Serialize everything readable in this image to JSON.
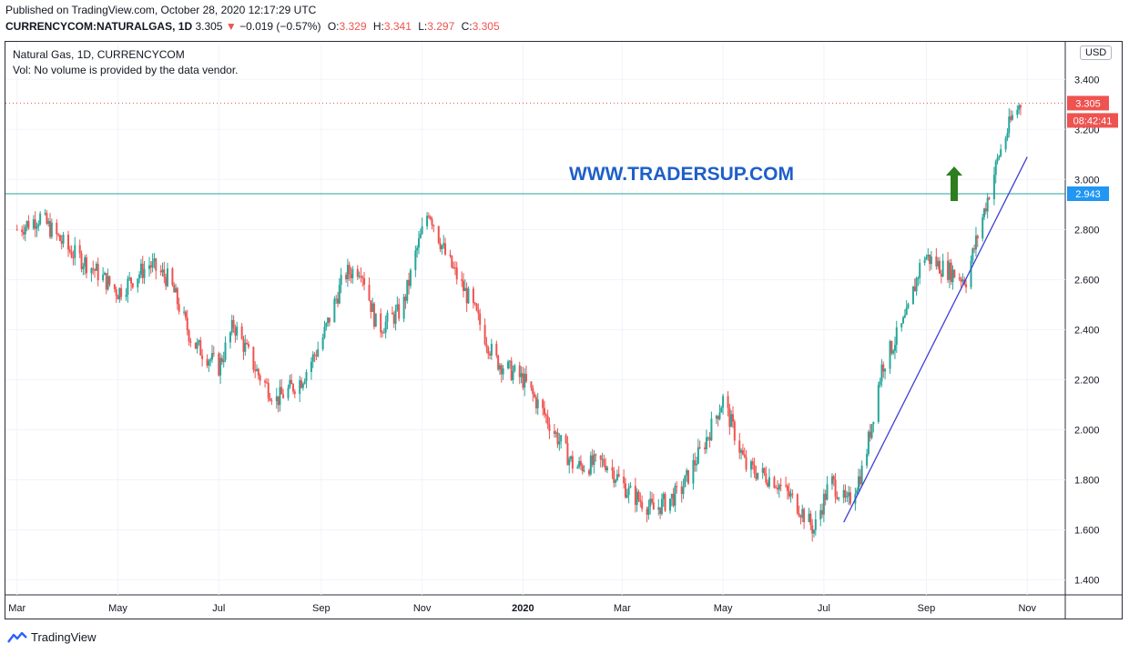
{
  "header": {
    "published": "Published on TradingView.com, October 28, 2020 12:17:29 UTC",
    "symbol": "CURRENCYCOM:NATURALGAS, 1D",
    "last": "3.305",
    "change": "−0.019 (−0.57%)",
    "open_label": "O:",
    "open": "3.329",
    "high_label": "H:",
    "high": "3.341",
    "low_label": "L:",
    "low": "3.297",
    "close_label": "C:",
    "close": "3.305"
  },
  "legend": {
    "title": "Natural Gas, 1D, CURRENCYCOM",
    "vol": "Vol: No volume is provided by the data vendor."
  },
  "price_axis": {
    "currency": "USD"
  },
  "watermark": "WWW.TRADERSUP.COM",
  "footer": {
    "brand": "TradingView"
  },
  "colors": {
    "up": "#26a69a",
    "down": "#ef5350",
    "hline": "#26a69a",
    "trendline": "#3f3fd6",
    "arrow": "#2e7d1f",
    "watermark": "#1e5fc8"
  },
  "chart_data": {
    "type": "candlestick",
    "title": "Natural Gas, 1D, CURRENCYCOM",
    "ylim": [
      1.34,
      3.55
    ],
    "y_ticks": [
      "1.400",
      "1.600",
      "1.800",
      "2.000",
      "2.200",
      "2.400",
      "2.600",
      "2.800",
      "3.000",
      "3.200",
      "3.400"
    ],
    "x_ticks": [
      "Mar",
      "May",
      "Jul",
      "Sep",
      "Nov",
      "2020",
      "Mar",
      "May",
      "Jul",
      "Sep",
      "Nov"
    ],
    "path_points": [
      [
        "2019-03-01",
        2.8
      ],
      [
        "2019-03-15",
        2.85
      ],
      [
        "2019-04-01",
        2.72
      ],
      [
        "2019-04-15",
        2.65
      ],
      [
        "2019-05-01",
        2.55
      ],
      [
        "2019-05-20",
        2.66
      ],
      [
        "2019-06-01",
        2.6
      ],
      [
        "2019-06-15",
        2.35
      ],
      [
        "2019-07-01",
        2.25
      ],
      [
        "2019-07-10",
        2.42
      ],
      [
        "2019-07-25",
        2.22
      ],
      [
        "2019-08-05",
        2.12
      ],
      [
        "2019-08-20",
        2.2
      ],
      [
        "2019-09-01",
        2.35
      ],
      [
        "2019-09-15",
        2.62
      ],
      [
        "2019-09-25",
        2.65
      ],
      [
        "2019-10-05",
        2.4
      ],
      [
        "2019-10-20",
        2.48
      ],
      [
        "2019-10-28",
        2.7
      ],
      [
        "2019-11-05",
        2.88
      ],
      [
        "2019-11-15",
        2.7
      ],
      [
        "2019-12-01",
        2.5
      ],
      [
        "2019-12-15",
        2.28
      ],
      [
        "2020-01-01",
        2.2
      ],
      [
        "2020-01-15",
        2.05
      ],
      [
        "2020-02-01",
        1.85
      ],
      [
        "2020-02-20",
        1.87
      ],
      [
        "2020-03-05",
        1.75
      ],
      [
        "2020-03-20",
        1.68
      ],
      [
        "2020-04-05",
        1.75
      ],
      [
        "2020-04-20",
        1.95
      ],
      [
        "2020-05-01",
        2.12
      ],
      [
        "2020-05-15",
        1.85
      ],
      [
        "2020-06-01",
        1.8
      ],
      [
        "2020-06-15",
        1.7
      ],
      [
        "2020-06-25",
        1.6
      ],
      [
        "2020-07-05",
        1.8
      ],
      [
        "2020-07-15",
        1.7
      ],
      [
        "2020-07-25",
        1.85
      ],
      [
        "2020-08-05",
        2.25
      ],
      [
        "2020-08-20",
        2.45
      ],
      [
        "2020-08-30",
        2.7
      ],
      [
        "2020-09-10",
        2.65
      ],
      [
        "2020-09-25",
        2.6
      ],
      [
        "2020-10-05",
        2.85
      ],
      [
        "2020-10-15",
        3.1
      ],
      [
        "2020-10-23",
        3.25
      ],
      [
        "2020-10-28",
        3.305
      ]
    ],
    "horizontal_line": {
      "value": 2.943,
      "label": "2.943"
    },
    "last_price": {
      "value": 3.305,
      "label": "3.305",
      "countdown": "08:42:41"
    },
    "trendline": {
      "from": [
        "2020-07-13",
        1.63
      ],
      "to": [
        "2020-11-01",
        3.09
      ]
    },
    "annotations": [
      "WWW.TRADERSUP.COM",
      "up-arrow"
    ]
  }
}
